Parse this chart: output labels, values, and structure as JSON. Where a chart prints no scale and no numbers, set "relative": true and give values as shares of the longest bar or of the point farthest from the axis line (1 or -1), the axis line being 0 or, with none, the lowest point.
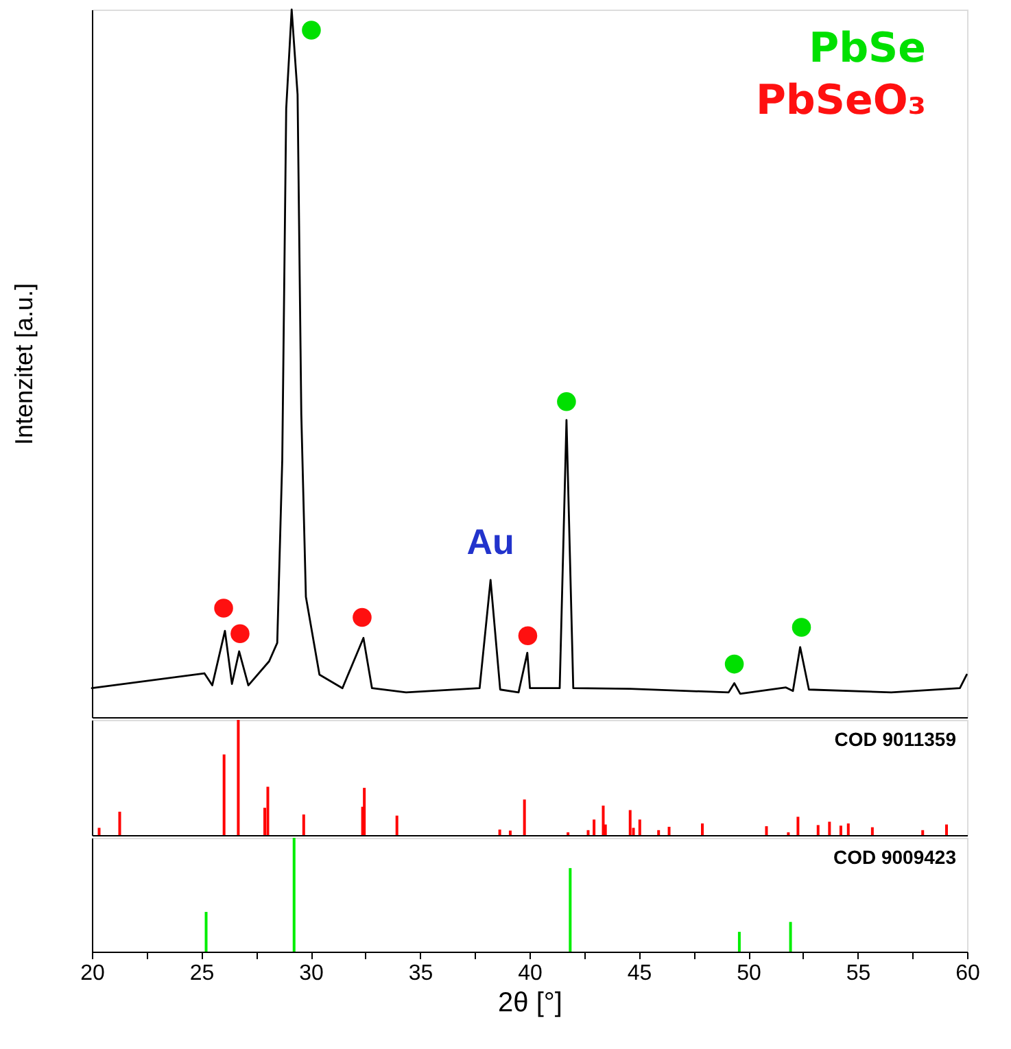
{
  "chart_data": [
    {
      "type": "line",
      "ylabel": "Intenzitet [a.u.]",
      "relative": true,
      "xlim": [
        20,
        60
      ],
      "tick_labels": false,
      "annotations": [
        {
          "text": "Au",
          "x": 38.22,
          "y": 0.194
        }
      ],
      "series": [
        {
          "type": "line",
          "color": "#000000",
          "line_style": "solid",
          "x": [
            20,
            25.14,
            25.5,
            26.08,
            26.4,
            26.73,
            27.15,
            28.1,
            28.47,
            28.7,
            28.88,
            29.13,
            29.4,
            29.57,
            29.78,
            30.4,
            31.45,
            32.41,
            32.8,
            34.36,
            37.72,
            38.22,
            38.66,
            39.5,
            39.9,
            40.02,
            41.38,
            41.69,
            42.0,
            44.6,
            49.1,
            49.36,
            49.63,
            51.72,
            52.04,
            52.37,
            52.77,
            56.53,
            59.67,
            59.98
          ],
          "values": [
            0.041,
            0.062,
            0.045,
            0.122,
            0.047,
            0.093,
            0.045,
            0.079,
            0.105,
            0.364,
            0.86,
            1,
            0.88,
            0.428,
            0.17,
            0.06,
            0.041,
            0.112,
            0.041,
            0.035,
            0.041,
            0.194,
            0.039,
            0.035,
            0.091,
            0.041,
            0.041,
            0.42,
            0.041,
            0.04,
            0.035,
            0.048,
            0.033,
            0.042,
            0.037,
            0.099,
            0.039,
            0.035,
            0.041,
            0.06
          ]
        },
        {
          "type": "scatter",
          "name": "PbSe",
          "color": "#00e000",
          "marker": "circle",
          "x": [
            30.03,
            41.69,
            49.36,
            52.43
          ],
          "values": [
            0.971,
            0.446,
            0.075,
            0.127
          ]
        },
        {
          "type": "scatter",
          "name": "PbSeO₃",
          "color": "#ff1010",
          "marker": "circle",
          "x": [
            26.02,
            26.77,
            32.35,
            39.92
          ],
          "values": [
            0.154,
            0.118,
            0.141,
            0.115
          ]
        }
      ]
    },
    {
      "type": "bar",
      "title": "COD 9011359",
      "relative": true,
      "xlim": [
        20,
        60
      ],
      "tick_labels": false,
      "series": [
        {
          "color": "#ff0000",
          "x": [
            20.33,
            21.27,
            26.04,
            26.69,
            27.9,
            28.04,
            29.68,
            32.37,
            32.45,
            33.94,
            38.64,
            39.12,
            39.77,
            41.76,
            42.68,
            42.95,
            43.37,
            43.47,
            44.6,
            44.75,
            45.04,
            45.9,
            46.38,
            47.9,
            50.83,
            51.83,
            52.27,
            53.19,
            53.71,
            54.23,
            54.57,
            55.67,
            57.97,
            59.06
          ],
          "values": [
            0.063,
            0.203,
            0.7,
            1,
            0.237,
            0.42,
            0.179,
            0.246,
            0.41,
            0.169,
            0.048,
            0.039,
            0.309,
            0.024,
            0.043,
            0.135,
            0.256,
            0.092,
            0.217,
            0.063,
            0.135,
            0.043,
            0.072,
            0.101,
            0.077,
            0.024,
            0.159,
            0.087,
            0.116,
            0.082,
            0.101,
            0.068,
            0.043,
            0.092
          ]
        }
      ]
    },
    {
      "type": "bar",
      "title": "COD 9009423",
      "xlabel": "2θ [°]",
      "relative": true,
      "xlim": [
        20,
        60
      ],
      "xticks": [
        20,
        {
          "value": 22.5,
          "label": null
        },
        25,
        {
          "value": 27.5,
          "label": null
        },
        30,
        {
          "value": 32.5,
          "label": null
        },
        35,
        {
          "value": 37.5,
          "label": null
        },
        40,
        {
          "value": 42.5,
          "label": null
        },
        45,
        {
          "value": 47.5,
          "label": null
        },
        50,
        {
          "value": 52.5,
          "label": null
        },
        55,
        {
          "value": 57.5,
          "label": null
        },
        60
      ],
      "tick_labels": "x",
      "series": [
        {
          "color": "#00ee00",
          "x": [
            25.22,
            29.24,
            41.86,
            49.59,
            51.93
          ],
          "values": [
            0.349,
            1,
            0.734,
            0.174,
            0.261
          ]
        }
      ]
    }
  ]
}
